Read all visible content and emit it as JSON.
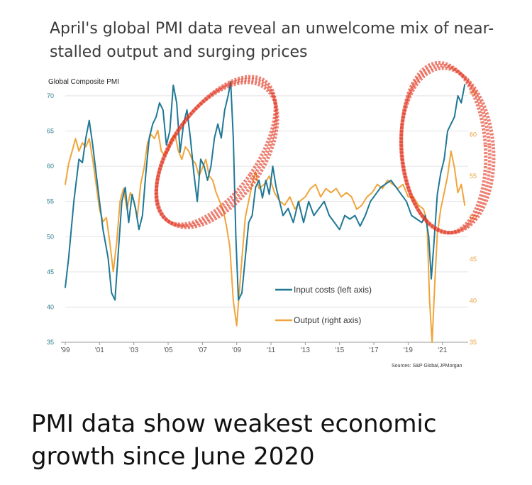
{
  "title": "April's global PMI data reveal an unwelcome mix of near-stalled output and surging prices",
  "caption": "PMI data show weakest economic growth since June 2020",
  "colors": {
    "input_costs": "#1f7896",
    "output": "#f0a53c",
    "annotation": "#e2331f",
    "gridline": "#e3e3e3"
  },
  "chart_data": {
    "type": "line",
    "axis_title": "Global Composite PMI",
    "source": "Sources: S&P Global,JPMorgan",
    "x_ticks": [
      "'99",
      "'01",
      "'03",
      "'05",
      "'07",
      "'09",
      "'11",
      "'13",
      "'15",
      "'17",
      "'19",
      "'21"
    ],
    "x_tick_values": [
      1999,
      2001,
      2003,
      2005,
      2007,
      2009,
      2011,
      2013,
      2015,
      2017,
      2019,
      2021
    ],
    "xlim": [
      1999,
      2022.5
    ],
    "y_left": {
      "ticks": [
        "35",
        "40",
        "45",
        "50",
        "55",
        "60",
        "65",
        "70"
      ],
      "tick_values": [
        35,
        40,
        45,
        50,
        55,
        60,
        65,
        70
      ],
      "lim": [
        35,
        71
      ]
    },
    "y_right": {
      "ticks": [
        "35",
        "40",
        "45",
        "50",
        "55",
        "60",
        "65"
      ],
      "tick_values": [
        35,
        40,
        45,
        50,
        55,
        60,
        65
      ],
      "lim": [
        35,
        65.5
      ]
    },
    "grid": true,
    "legend_position": "lower-right",
    "series": [
      {
        "name": "Input costs (left axis)",
        "axis": "left",
        "x": [
          1999.0,
          1999.2,
          1999.5,
          1999.8,
          2000.0,
          2000.2,
          2000.4,
          2000.6,
          2000.8,
          2001.0,
          2001.2,
          2001.5,
          2001.7,
          2001.9,
          2002.1,
          2002.3,
          2002.5,
          2002.7,
          2002.9,
          2003.1,
          2003.3,
          2003.5,
          2003.7,
          2003.9,
          2004.1,
          2004.3,
          2004.5,
          2004.7,
          2004.9,
          2005.1,
          2005.3,
          2005.5,
          2005.7,
          2005.9,
          2006.1,
          2006.3,
          2006.5,
          2006.7,
          2006.9,
          2007.1,
          2007.3,
          2007.5,
          2007.7,
          2007.9,
          2008.1,
          2008.3,
          2008.5,
          2008.65,
          2008.8,
          2008.95,
          2009.1,
          2009.3,
          2009.5,
          2009.7,
          2009.9,
          2010.1,
          2010.3,
          2010.5,
          2010.7,
          2010.9,
          2011.1,
          2011.3,
          2011.5,
          2011.7,
          2012.0,
          2012.3,
          2012.6,
          2012.9,
          2013.2,
          2013.5,
          2013.8,
          2014.1,
          2014.4,
          2014.7,
          2015.0,
          2015.3,
          2015.6,
          2015.9,
          2016.2,
          2016.5,
          2016.8,
          2017.1,
          2017.4,
          2017.7,
          2018.0,
          2018.3,
          2018.6,
          2018.9,
          2019.2,
          2019.5,
          2019.8,
          2020.0,
          2020.2,
          2020.35,
          2020.5,
          2020.7,
          2020.9,
          2021.1,
          2021.3,
          2021.5,
          2021.7,
          2021.9,
          2022.1,
          2022.3
        ],
        "y": [
          42.8,
          47.0,
          55.0,
          61.0,
          60.5,
          64.0,
          66.5,
          63.0,
          59.0,
          55.0,
          51.0,
          47.0,
          42.0,
          41.0,
          48.0,
          55.0,
          57.0,
          52.0,
          56.0,
          54.0,
          51.0,
          53.0,
          59.0,
          64.0,
          66.0,
          67.0,
          69.0,
          68.0,
          63.0,
          65.0,
          71.5,
          69.0,
          62.0,
          66.0,
          68.0,
          64.0,
          59.0,
          55.0,
          61.0,
          60.0,
          58.0,
          60.0,
          64.0,
          66.0,
          64.0,
          68.0,
          70.0,
          72.0,
          64.0,
          50.0,
          41.0,
          42.0,
          47.0,
          52.0,
          53.0,
          57.0,
          58.0,
          55.5,
          58.0,
          56.0,
          60.0,
          57.0,
          55.0,
          53.0,
          54.0,
          52.0,
          55.0,
          52.0,
          55.0,
          53.0,
          54.0,
          55.0,
          53.0,
          52.0,
          51.0,
          53.0,
          52.5,
          53.0,
          51.5,
          53.0,
          55.0,
          56.0,
          57.0,
          57.5,
          58.0,
          57.0,
          56.0,
          55.0,
          53.0,
          52.5,
          52.0,
          53.0,
          50.0,
          44.0,
          49.0,
          56.0,
          59.0,
          61.0,
          65.0,
          66.0,
          67.0,
          70.0,
          69.0,
          71.6
        ]
      },
      {
        "name": "Output (right axis)",
        "axis": "right",
        "x": [
          1999.0,
          1999.2,
          1999.4,
          1999.6,
          1999.8,
          2000.0,
          2000.2,
          2000.4,
          2000.6,
          2000.8,
          2001.0,
          2001.2,
          2001.4,
          2001.6,
          2001.8,
          2002.0,
          2002.2,
          2002.4,
          2002.6,
          2002.8,
          2003.0,
          2003.2,
          2003.4,
          2003.6,
          2003.8,
          2004.0,
          2004.2,
          2004.4,
          2004.6,
          2004.8,
          2005.0,
          2005.2,
          2005.4,
          2005.6,
          2005.8,
          2006.0,
          2006.2,
          2006.4,
          2006.6,
          2006.8,
          2007.0,
          2007.2,
          2007.4,
          2007.6,
          2007.8,
          2008.0,
          2008.2,
          2008.4,
          2008.6,
          2008.8,
          2009.0,
          2009.15,
          2009.3,
          2009.5,
          2009.7,
          2009.9,
          2010.1,
          2010.3,
          2010.6,
          2010.9,
          2011.2,
          2011.5,
          2011.8,
          2012.1,
          2012.4,
          2012.7,
          2013.0,
          2013.3,
          2013.6,
          2013.9,
          2014.2,
          2014.5,
          2014.8,
          2015.1,
          2015.4,
          2015.7,
          2016.0,
          2016.3,
          2016.6,
          2016.9,
          2017.2,
          2017.5,
          2017.8,
          2018.1,
          2018.4,
          2018.7,
          2019.0,
          2019.3,
          2019.6,
          2019.9,
          2020.1,
          2020.25,
          2020.4,
          2020.55,
          2020.7,
          2020.9,
          2021.1,
          2021.3,
          2021.5,
          2021.7,
          2021.9,
          2022.1,
          2022.3
        ],
        "y": [
          54.0,
          56.5,
          58.0,
          59.5,
          58.0,
          59.0,
          58.5,
          59.5,
          57.0,
          54.0,
          51.0,
          49.5,
          50.0,
          47.0,
          43.5,
          47.0,
          52.0,
          53.5,
          51.0,
          53.0,
          52.0,
          50.0,
          54.0,
          56.0,
          59.0,
          60.0,
          59.5,
          60.5,
          58.0,
          57.5,
          58.0,
          59.5,
          60.0,
          58.0,
          57.0,
          58.5,
          58.0,
          57.0,
          56.5,
          55.0,
          56.0,
          57.0,
          55.0,
          54.5,
          53.0,
          52.0,
          51.0,
          49.0,
          46.5,
          40.0,
          37.0,
          41.0,
          45.0,
          50.0,
          52.0,
          54.0,
          55.5,
          53.5,
          54.0,
          55.0,
          53.0,
          52.0,
          51.5,
          52.5,
          51.0,
          52.0,
          52.5,
          53.5,
          54.0,
          52.5,
          53.5,
          53.0,
          53.5,
          52.5,
          53.0,
          52.5,
          51.0,
          51.5,
          52.5,
          53.0,
          54.0,
          53.5,
          54.5,
          54.0,
          53.5,
          54.0,
          52.5,
          52.5,
          51.5,
          51.0,
          49.5,
          40.0,
          35.0,
          42.0,
          48.0,
          51.0,
          53.0,
          55.0,
          58.0,
          56.0,
          53.0,
          54.0,
          51.5
        ]
      }
    ]
  }
}
